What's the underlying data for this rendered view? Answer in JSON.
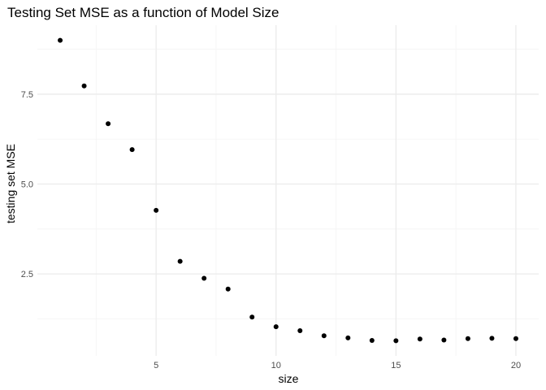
{
  "chart_data": {
    "type": "scatter",
    "title": "Testing Set MSE as a function of Model Size",
    "xlabel": "size",
    "ylabel": "testing set MSE",
    "xlim": [
      0.05,
      20.95
    ],
    "ylim": [
      0.22,
      9.42
    ],
    "x_ticks": [
      5,
      10,
      15,
      20
    ],
    "y_ticks": [
      2.5,
      5.0,
      7.5
    ],
    "y_tick_labels": [
      "2.5",
      "5.0",
      "7.5"
    ],
    "x_minor_gridlines": [
      2.5,
      7.5,
      12.5,
      17.5
    ],
    "y_minor_gridlines": [
      1.25,
      3.75,
      6.25,
      8.75
    ],
    "grid": true,
    "point_color": "#000000",
    "grid_major_color": "#ebebeb",
    "grid_minor_color": "#f4f4f4",
    "points": [
      {
        "x": 1,
        "y": 9.0
      },
      {
        "x": 2,
        "y": 7.73
      },
      {
        "x": 3,
        "y": 6.68
      },
      {
        "x": 4,
        "y": 5.96
      },
      {
        "x": 5,
        "y": 4.27
      },
      {
        "x": 6,
        "y": 2.85
      },
      {
        "x": 7,
        "y": 2.38
      },
      {
        "x": 8,
        "y": 2.08
      },
      {
        "x": 9,
        "y": 1.3
      },
      {
        "x": 10,
        "y": 1.03
      },
      {
        "x": 11,
        "y": 0.92
      },
      {
        "x": 12,
        "y": 0.78
      },
      {
        "x": 13,
        "y": 0.72
      },
      {
        "x": 14,
        "y": 0.65
      },
      {
        "x": 15,
        "y": 0.64
      },
      {
        "x": 16,
        "y": 0.69
      },
      {
        "x": 17,
        "y": 0.66
      },
      {
        "x": 18,
        "y": 0.7
      },
      {
        "x": 19,
        "y": 0.71
      },
      {
        "x": 20,
        "y": 0.7
      }
    ]
  }
}
